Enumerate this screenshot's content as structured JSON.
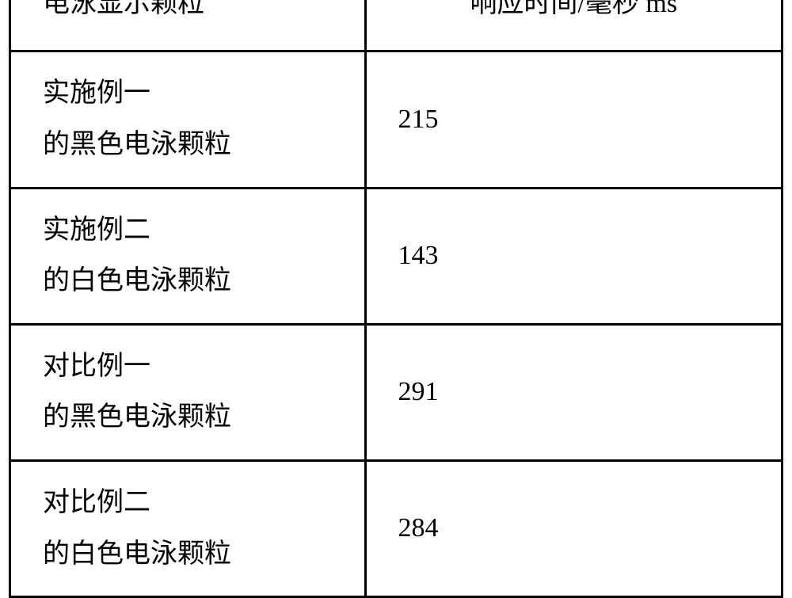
{
  "table": {
    "type": "table",
    "border_color": "#000000",
    "border_width": 3,
    "background_color": "#ffffff",
    "text_color": "#000000",
    "font_size_pt": 26,
    "font_family": "SimSun",
    "columns": [
      {
        "label": "电泳显示颗粒",
        "width_pct": 46,
        "align": "left"
      },
      {
        "label": "响应时间/毫秒 ms",
        "width_pct": 54,
        "align": "center"
      }
    ],
    "rows": [
      {
        "label_line1": "实施例一",
        "label_line2": "的黑色电泳颗粒",
        "value": "215"
      },
      {
        "label_line1": "实施例二",
        "label_line2": "的白色电泳颗粒",
        "value": "143"
      },
      {
        "label_line1": "对比例一",
        "label_line2": "的黑色电泳颗粒",
        "value": "291"
      },
      {
        "label_line1": "对比例二",
        "label_line2": "的白色电泳颗粒",
        "value": "284"
      }
    ]
  }
}
